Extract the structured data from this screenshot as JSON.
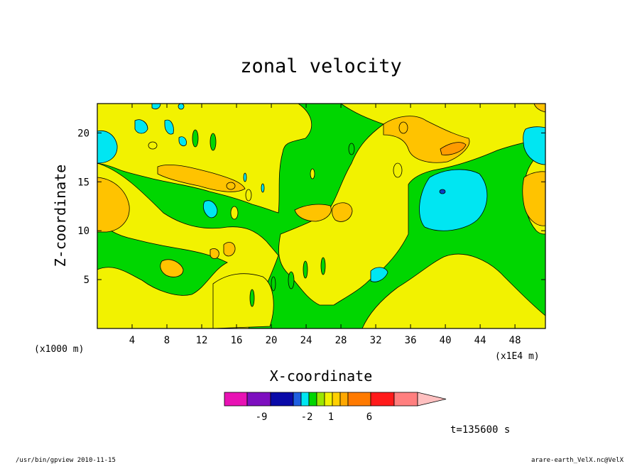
{
  "chart_data": {
    "type": "heatmap",
    "title": "zonal velocity",
    "xlabel": "X-coordinate",
    "ylabel": "Z-coordinate",
    "x_unit_label": "(x1E4 m)",
    "y_unit_label": "(x1000 m)",
    "xlim": [
      0,
      51.5
    ],
    "ylim": [
      0,
      23
    ],
    "x_ticks": [
      4,
      8,
      12,
      16,
      20,
      24,
      28,
      32,
      36,
      40,
      44,
      48
    ],
    "y_ticks": [
      5,
      10,
      15,
      20
    ],
    "x_tick_labels": [
      "4",
      "8",
      "12",
      "16",
      "20",
      "24",
      "28",
      "32",
      "36",
      "40",
      "44",
      "48"
    ],
    "y_tick_labels": [
      "5",
      "10",
      "15",
      "20"
    ],
    "colorbar": {
      "colors": [
        "#e812b4",
        "#7d0fbf",
        "#0a0aa8",
        "#1f5fe0",
        "#00e6f2",
        "#00d600",
        "#9be600",
        "#f2f200",
        "#ffd000",
        "#ffa800",
        "#ff7a00",
        "#ff1a1a",
        "#ff7f7f",
        "#ffc0c0"
      ],
      "labels": [
        "-9",
        "-2",
        "1",
        "6"
      ]
    },
    "time_label": "t=135600 s",
    "footer_left": "/usr/bin/gpview  2010-11-15",
    "footer_right": "arare-earth_VelX.nc@VelX"
  },
  "colors": {
    "green": "#00d600",
    "yellow": "#f2f200",
    "orange": "#ffc300",
    "dark_orange": "#ff9b00",
    "cyan": "#00e6f2",
    "blue": "#0a3fc8"
  }
}
